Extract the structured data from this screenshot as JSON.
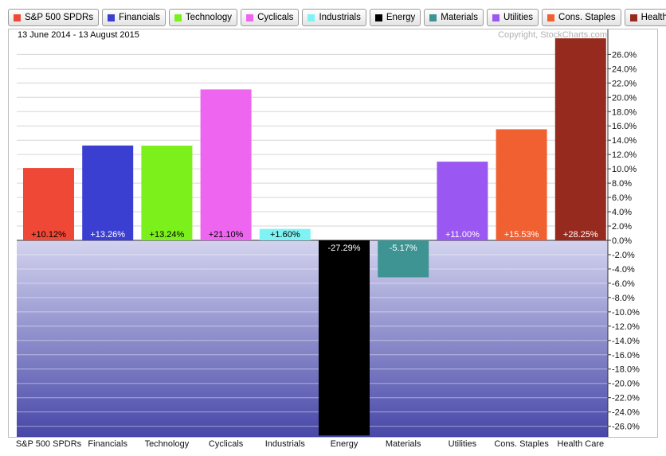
{
  "legend": [
    {
      "label": "S&P 500 SPDRs",
      "color": "#ef4836"
    },
    {
      "label": "Financials",
      "color": "#3b3fd1"
    },
    {
      "label": "Technology",
      "color": "#7cf01a"
    },
    {
      "label": "Cyclicals",
      "color": "#ee66f0"
    },
    {
      "label": "Industrials",
      "color": "#7ff3f3"
    },
    {
      "label": "Energy",
      "color": "#000000"
    },
    {
      "label": "Materials",
      "color": "#3e9393"
    },
    {
      "label": "Utilities",
      "color": "#9a57f2"
    },
    {
      "label": "Cons. Staples",
      "color": "#f06030"
    },
    {
      "label": "Health Care",
      "color": "#972a1e"
    }
  ],
  "date_range": "13 June 2014 - 13 August 2015",
  "copyright": "Copyright, StockCharts.com",
  "chart_data": {
    "type": "bar",
    "categories": [
      "S&P 500 SPDRs",
      "Financials",
      "Technology",
      "Cyclicals",
      "Industrials",
      "Energy",
      "Materials",
      "Utilities",
      "Cons. Staples",
      "Health Care"
    ],
    "values": [
      10.12,
      13.26,
      13.24,
      21.1,
      1.6,
      -27.29,
      -5.17,
      11.0,
      15.53,
      28.25
    ],
    "value_labels": [
      "+10.12%",
      "+13.26%",
      "+13.24%",
      "+21.10%",
      "+1.60%",
      "-27.29%",
      "-5.17%",
      "+11.00%",
      "+15.53%",
      "+28.25%"
    ],
    "colors": [
      "#ef4836",
      "#3b3fd1",
      "#7cf01a",
      "#ee66f0",
      "#7ff3f3",
      "#000000",
      "#3e9393",
      "#9a57f2",
      "#f06030",
      "#972a1e"
    ],
    "label_colors": [
      "#000000",
      "#ffffff",
      "#000000",
      "#000000",
      "#000000",
      "#ffffff",
      "#ffffff",
      "#ffffff",
      "#ffffff",
      "#ffffff"
    ],
    "yticks": [
      26,
      24,
      22,
      20,
      18,
      16,
      14,
      12,
      10,
      8,
      6,
      4,
      2,
      0,
      -2,
      -4,
      -6,
      -8,
      -10,
      -12,
      -14,
      -16,
      -18,
      -20,
      -22,
      -24,
      -26
    ],
    "ytick_labels": [
      "26.0%",
      "24.0%",
      "22.0%",
      "20.0%",
      "18.0%",
      "16.0%",
      "14.0%",
      "12.0%",
      "10.0%",
      "8.0%",
      "6.0%",
      "4.0%",
      "2.0%",
      "0.0%",
      "-2.0%",
      "-4.0%",
      "-6.0%",
      "-8.0%",
      "-10.0%",
      "-12.0%",
      "-14.0%",
      "-16.0%",
      "-18.0%",
      "-20.0%",
      "-22.0%",
      "-24.0%",
      "-26.0%"
    ],
    "ylim": [
      -27.29,
      28.25
    ],
    "y_axis_side": "right",
    "grid": true,
    "title": "",
    "xlabel": "",
    "ylabel": ""
  }
}
